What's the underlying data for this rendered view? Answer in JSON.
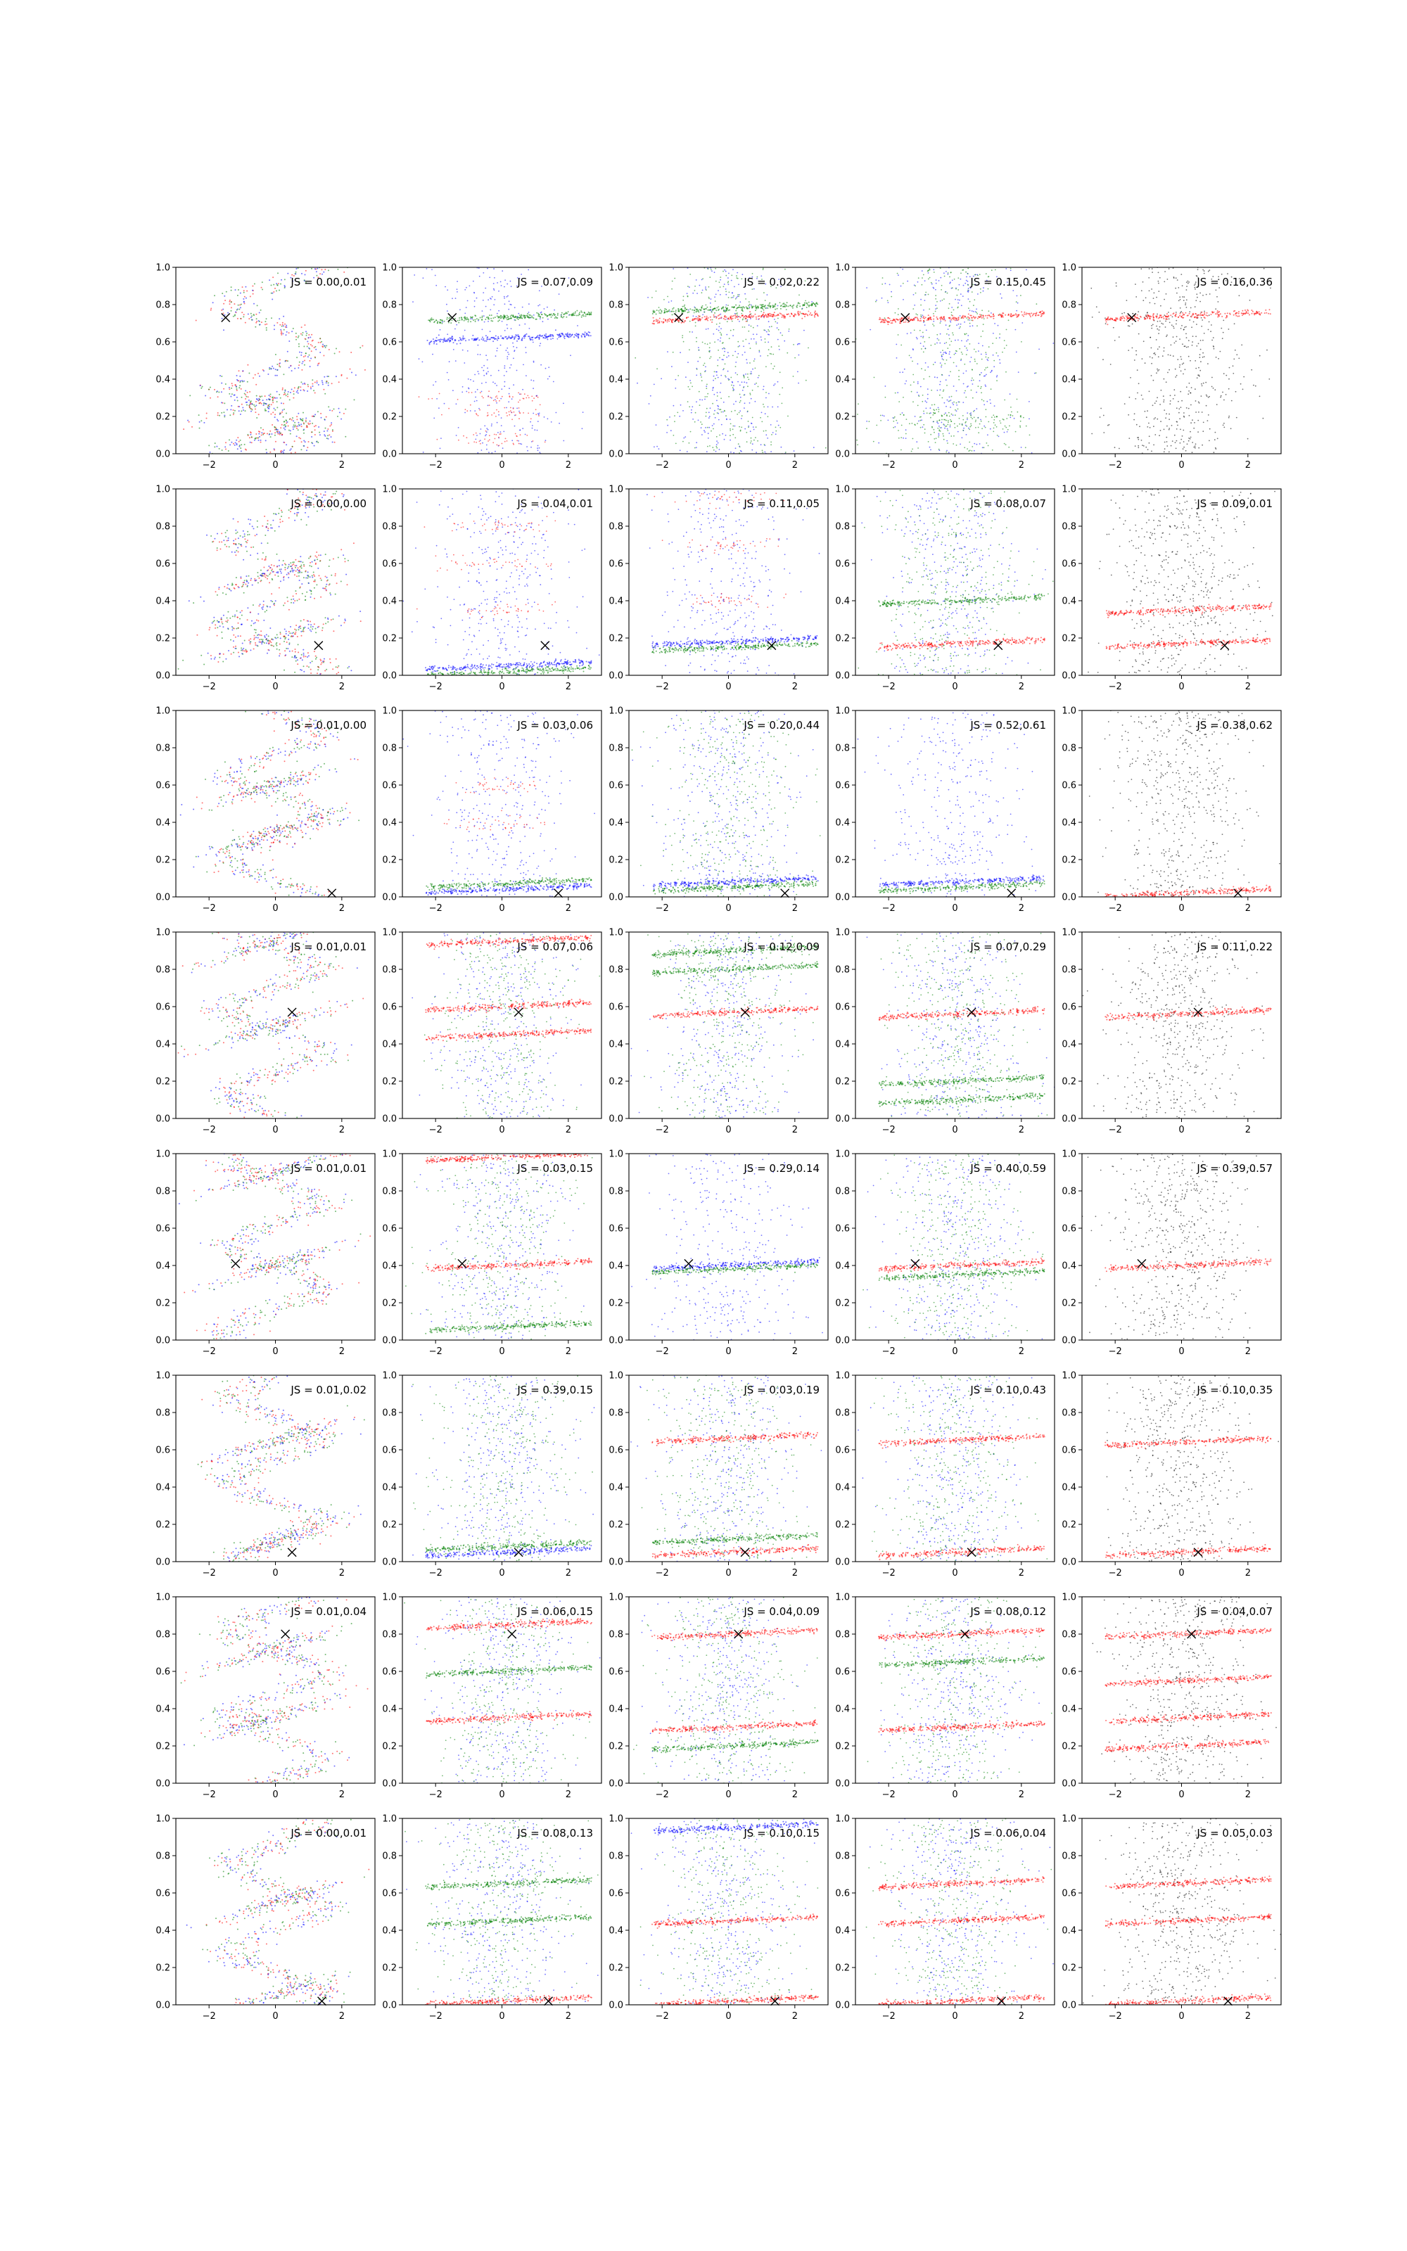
{
  "figure": {
    "background": "#ffffff",
    "series_colors": {
      "red": "#ff0000",
      "green": "#008000",
      "blue": "#0000ff",
      "black": "#000000"
    },
    "marker": "x"
  },
  "chart_data": {
    "type": "scatter",
    "layout": {
      "rows": 8,
      "cols": 5
    },
    "xlim": [
      -3,
      3
    ],
    "ylim": [
      0,
      1
    ],
    "xticks": [
      "−2",
      "0",
      "2"
    ],
    "yticks": [
      "0.0",
      "0.2",
      "0.4",
      "0.6",
      "0.8",
      "1.0"
    ],
    "grid": false,
    "rows": [
      {
        "x_mark": [
          -1.5,
          0.73
        ],
        "js": [
          "JS = 0.00,0.01",
          "JS = 0.07,0.09",
          "JS = 0.02,0.22",
          "JS = 0.15,0.45",
          "JS = 0.16,0.36"
        ]
      },
      {
        "x_mark": [
          1.3,
          0.16
        ],
        "js": [
          "JS = 0.00,0.00",
          "JS = 0.04,0.01",
          "JS = 0.11,0.05",
          "JS = 0.08,0.07",
          "JS = 0.09,0.01"
        ]
      },
      {
        "x_mark": [
          1.7,
          0.02
        ],
        "js": [
          "JS = 0.01,0.00",
          "JS = 0.03,0.06",
          "JS = 0.20,0.44",
          "JS = 0.52,0.61",
          "JS = 0.38,0.62"
        ]
      },
      {
        "x_mark": [
          0.5,
          0.57
        ],
        "js": [
          "JS = 0.01,0.01",
          "JS = 0.07,0.06",
          "JS = 0.12,0.09",
          "JS = 0.07,0.29",
          "JS = 0.11,0.22"
        ]
      },
      {
        "x_mark": [
          -1.2,
          0.41
        ],
        "js": [
          "JS = 0.01,0.01",
          "JS = 0.03,0.15",
          "JS = 0.29,0.14",
          "JS = 0.40,0.59",
          "JS = 0.39,0.57"
        ]
      },
      {
        "x_mark": [
          0.5,
          0.05
        ],
        "js": [
          "JS = 0.01,0.02",
          "JS = 0.39,0.15",
          "JS = 0.03,0.19",
          "JS = 0.10,0.43",
          "JS = 0.10,0.35"
        ]
      },
      {
        "x_mark": [
          0.3,
          0.8
        ],
        "js": [
          "JS = 0.01,0.04",
          "JS = 0.06,0.15",
          "JS = 0.04,0.09",
          "JS = 0.08,0.12",
          "JS = 0.04,0.07"
        ]
      },
      {
        "x_mark": [
          1.4,
          0.02
        ],
        "js": [
          "JS = 0.00,0.01",
          "JS = 0.08,0.13",
          "JS = 0.10,0.15",
          "JS = 0.06,0.04",
          "JS = 0.05,0.03"
        ]
      }
    ],
    "structures": [
      [
        {
          "spiral": true,
          "centers": [
            0.12,
            0.3
          ],
          "colors": [
            "red",
            "green",
            "blue"
          ]
        },
        {
          "lines": [
            0.73,
            0.62
          ],
          "colors": [
            "green",
            "blue"
          ],
          "extra_red": [
            0.3,
            0.22,
            0.08
          ]
        },
        {
          "lines": [
            0.78,
            0.73
          ],
          "colors": [
            "green",
            "red"
          ],
          "cloud": [
            "blue",
            "green"
          ]
        },
        {
          "lines": [
            0.73
          ],
          "colors": [
            "red"
          ],
          "low": [
            0.2,
            0.15
          ],
          "cloud": [
            "blue",
            "green"
          ]
        },
        {
          "lines": [
            0.74
          ],
          "colors": [
            "red"
          ],
          "cloud": [
            "black"
          ]
        }
      ],
      [
        {
          "spiral": true,
          "centers": [
            0.2,
            0.55
          ],
          "colors": [
            "red",
            "green",
            "blue"
          ]
        },
        {
          "lines": [
            0.02,
            0.05
          ],
          "colors": [
            "green",
            "blue"
          ],
          "extra_red": [
            0.8,
            0.6,
            0.35
          ]
        },
        {
          "lines": [
            0.18,
            0.15
          ],
          "colors": [
            "blue",
            "green"
          ],
          "extra_red": [
            0.95,
            0.7,
            0.4
          ]
        },
        {
          "lines": [
            0.17,
            0.4
          ],
          "colors": [
            "red",
            "green"
          ],
          "cloud": [
            "blue",
            "green"
          ]
        },
        {
          "lines": [
            0.17,
            0.35
          ],
          "colors": [
            "red",
            "red"
          ],
          "cloud": [
            "black"
          ]
        }
      ],
      [
        {
          "spiral": true,
          "centers": [
            0.35,
            0.6
          ],
          "colors": [
            "red",
            "green",
            "blue"
          ]
        },
        {
          "lines": [
            0.04,
            0.07
          ],
          "colors": [
            "blue",
            "green"
          ],
          "extra_red": [
            0.6,
            0.4
          ]
        },
        {
          "lines": [
            0.05,
            0.08
          ],
          "colors": [
            "green",
            "blue"
          ],
          "cloud": [
            "blue",
            "green"
          ]
        },
        {
          "lines": [
            0.05,
            0.08
          ],
          "colors": [
            "green",
            "blue"
          ],
          "cloud": [
            "blue"
          ]
        },
        {
          "lines": [
            0.02
          ],
          "colors": [
            "red"
          ],
          "cloud": [
            "black"
          ]
        }
      ],
      [
        {
          "spiral": true,
          "centers": [
            0.5,
            0.95
          ],
          "colors": [
            "red",
            "green",
            "blue"
          ]
        },
        {
          "lines": [
            0.95,
            0.6,
            0.45
          ],
          "colors": [
            "red",
            "red",
            "red"
          ],
          "cloud": [
            "blue",
            "green"
          ]
        },
        {
          "lines": [
            0.57,
            0.9,
            0.8
          ],
          "colors": [
            "red",
            "green",
            "green"
          ],
          "cloud": [
            "blue",
            "green"
          ]
        },
        {
          "lines": [
            0.56,
            0.2,
            0.1
          ],
          "colors": [
            "red",
            "green",
            "green"
          ],
          "cloud": [
            "blue",
            "green"
          ]
        },
        {
          "lines": [
            0.56
          ],
          "colors": [
            "red"
          ],
          "cloud": [
            "black"
          ]
        }
      ],
      [
        {
          "spiral": true,
          "centers": [
            0.4,
            0.9
          ],
          "colors": [
            "red",
            "green",
            "blue"
          ]
        },
        {
          "lines": [
            0.98,
            0.4,
            0.07
          ],
          "colors": [
            "red",
            "red",
            "green"
          ],
          "cloud": [
            "blue",
            "green"
          ]
        },
        {
          "lines": [
            0.4,
            0.38
          ],
          "colors": [
            "blue",
            "green"
          ],
          "cloud": [
            "blue"
          ]
        },
        {
          "lines": [
            0.4,
            0.35
          ],
          "colors": [
            "red",
            "green"
          ],
          "cloud": [
            "blue",
            "green"
          ]
        },
        {
          "lines": [
            0.4
          ],
          "colors": [
            "red"
          ],
          "cloud": [
            "black"
          ]
        }
      ],
      [
        {
          "spiral": true,
          "centers": [
            0.12,
            0.65
          ],
          "colors": [
            "red",
            "green",
            "blue"
          ]
        },
        {
          "lines": [
            0.05,
            0.08
          ],
          "colors": [
            "blue",
            "green"
          ],
          "cloud": [
            "blue",
            "green"
          ]
        },
        {
          "lines": [
            0.66,
            0.05,
            0.12
          ],
          "colors": [
            "red",
            "red",
            "green"
          ],
          "cloud": [
            "blue",
            "green"
          ]
        },
        {
          "lines": [
            0.05,
            0.65
          ],
          "colors": [
            "red",
            "red"
          ],
          "cloud": [
            "blue",
            "green"
          ]
        },
        {
          "lines": [
            0.05,
            0.64
          ],
          "colors": [
            "red",
            "red"
          ],
          "cloud": [
            "black"
          ]
        }
      ],
      [
        {
          "spiral": true,
          "centers": [
            0.35,
            0.72
          ],
          "colors": [
            "red",
            "green",
            "blue"
          ]
        },
        {
          "lines": [
            0.85,
            0.35,
            0.6
          ],
          "colors": [
            "red",
            "red",
            "green"
          ],
          "cloud": [
            "blue",
            "green"
          ]
        },
        {
          "lines": [
            0.8,
            0.3,
            0.2
          ],
          "colors": [
            "red",
            "red",
            "green"
          ],
          "cloud": [
            "blue",
            "green"
          ]
        },
        {
          "lines": [
            0.65,
            0.8,
            0.3
          ],
          "colors": [
            "green",
            "red",
            "red"
          ],
          "cloud": [
            "blue",
            "green"
          ]
        },
        {
          "lines": [
            0.8,
            0.55,
            0.35,
            0.2
          ],
          "colors": [
            "red",
            "red",
            "red",
            "red"
          ],
          "cloud": [
            "black"
          ]
        }
      ],
      [
        {
          "spiral": true,
          "centers": [
            0.05,
            0.55
          ],
          "colors": [
            "red",
            "green",
            "blue"
          ]
        },
        {
          "lines": [
            0.45,
            0.02,
            0.65
          ],
          "colors": [
            "green",
            "red",
            "green"
          ],
          "cloud": [
            "blue",
            "green"
          ]
        },
        {
          "lines": [
            0.45,
            0.02,
            0.95
          ],
          "colors": [
            "red",
            "red",
            "blue"
          ],
          "cloud": [
            "blue",
            "green"
          ]
        },
        {
          "lines": [
            0.45,
            0.65,
            0.02
          ],
          "colors": [
            "red",
            "red",
            "red"
          ],
          "cloud": [
            "blue",
            "green"
          ]
        },
        {
          "lines": [
            0.45,
            0.65,
            0.02
          ],
          "colors": [
            "red",
            "red",
            "red"
          ],
          "cloud": [
            "black"
          ]
        }
      ]
    ]
  }
}
